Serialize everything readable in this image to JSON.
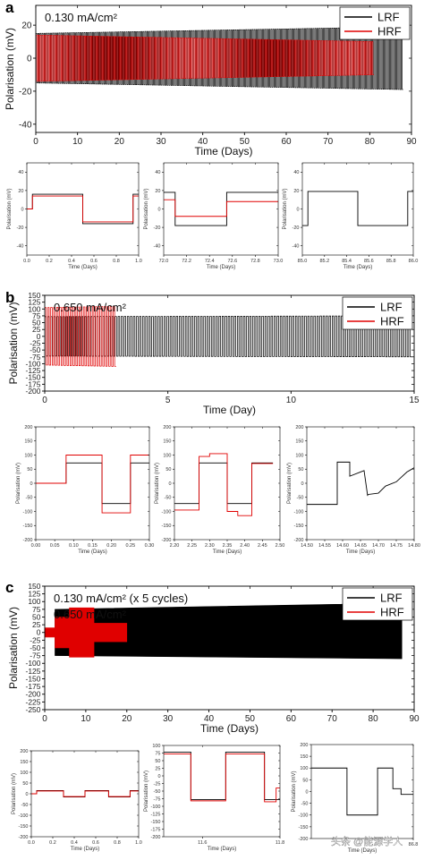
{
  "colors": {
    "LRF": "#000000",
    "HRF": "#e00000",
    "frame": "#000000"
  },
  "watermark": "头条 @能源学人",
  "chart_data": [
    {
      "panel": "a",
      "type": "line",
      "annotation": "0.130 mA/cm²",
      "xlabel": "Time (Days)",
      "ylabel": "Polarisation (mV)",
      "xlim": [
        0,
        90
      ],
      "ylim": [
        -45,
        32
      ],
      "xticks": [
        0,
        10,
        20,
        30,
        40,
        50,
        60,
        70,
        80,
        90
      ],
      "yticks": [
        -40,
        -20,
        0,
        20
      ],
      "legend": {
        "placement": "top-right",
        "entries": [
          "LRF",
          "HRF"
        ]
      },
      "series": [
        {
          "name": "LRF",
          "color": "#000000",
          "kind": "square-wave",
          "x_range": [
            0,
            88
          ],
          "amplitude_start": 15,
          "amplitude_end": 19,
          "cycles": 175
        },
        {
          "name": "HRF",
          "color": "#e00000",
          "kind": "square-wave",
          "x_range": [
            0,
            81
          ],
          "amplitude_start": 14,
          "amplitude_end": 10,
          "cycles": 160
        }
      ]
    },
    {
      "panel": "a1",
      "type": "line",
      "xlabel": "Time (Days)",
      "ylabel": "Polarisation (mV)",
      "xlim": [
        0,
        1
      ],
      "ylim": [
        -50,
        50
      ],
      "xticks": [
        0.0,
        0.2,
        0.4,
        0.6,
        0.8,
        1.0
      ],
      "xtick_labels": [
        "0.0",
        "0.2",
        "0.4",
        "0.6",
        "0.8",
        "1.0"
      ],
      "yticks": [
        -40,
        -20,
        0,
        20,
        40
      ],
      "series": [
        {
          "name": "LRF",
          "color": "#000000",
          "x": [
            0,
            0.05,
            0.05,
            0.5,
            0.5,
            0.95,
            0.95,
            1.0
          ],
          "y": [
            0,
            0,
            16,
            16,
            -16,
            -16,
            16,
            16
          ]
        },
        {
          "name": "HRF",
          "color": "#e00000",
          "x": [
            0,
            0.05,
            0.05,
            0.5,
            0.5,
            0.95,
            0.95,
            1.0
          ],
          "y": [
            0,
            0,
            14,
            14,
            -14,
            -14,
            14,
            14
          ]
        }
      ]
    },
    {
      "panel": "a2",
      "type": "line",
      "xlabel": "Time (Days)",
      "ylabel": "Polarisation (mV)",
      "xlim": [
        72.0,
        73.0
      ],
      "ylim": [
        -50,
        50
      ],
      "xticks": [
        72.0,
        72.2,
        72.4,
        72.6,
        72.8,
        73.0
      ],
      "xtick_labels": [
        "72.0",
        "72.2",
        "72.4",
        "72.6",
        "72.8",
        "73.0"
      ],
      "yticks": [
        -40,
        -20,
        0,
        20,
        40
      ],
      "series": [
        {
          "name": "LRF",
          "color": "#000000",
          "x": [
            72.0,
            72.1,
            72.1,
            72.55,
            72.55,
            73.0
          ],
          "y": [
            18,
            18,
            -18,
            -18,
            18,
            18
          ]
        },
        {
          "name": "HRF",
          "color": "#e00000",
          "x": [
            72.0,
            72.1,
            72.1,
            72.55,
            72.55,
            73.0
          ],
          "y": [
            10,
            10,
            -8,
            -8,
            8,
            8
          ]
        }
      ]
    },
    {
      "panel": "a3",
      "type": "line",
      "xlabel": "Time (Days)",
      "ylabel": "Polarisation (mV)",
      "xlim": [
        85.0,
        86.0
      ],
      "ylim": [
        -50,
        50
      ],
      "xticks": [
        85.0,
        85.2,
        85.4,
        85.6,
        85.8,
        86.0
      ],
      "xtick_labels": [
        "85.0",
        "85.2",
        "85.4",
        "85.6",
        "85.8",
        "86.0"
      ],
      "yticks": [
        -40,
        -20,
        0,
        20,
        40
      ],
      "series": [
        {
          "name": "LRF",
          "color": "#000000",
          "x": [
            85.0,
            85.05,
            85.05,
            85.5,
            85.5,
            85.95,
            85.95,
            86.0
          ],
          "y": [
            -18,
            -18,
            19,
            19,
            -18,
            -18,
            19,
            19
          ]
        }
      ]
    },
    {
      "panel": "b",
      "type": "line",
      "annotation": "0.650 mA/cm²",
      "xlabel": "Time (Day)",
      "ylabel": "Polarisation (mV)",
      "xlim": [
        0,
        15
      ],
      "ylim": [
        -200,
        150
      ],
      "xticks": [
        0,
        5,
        10,
        15
      ],
      "yticks": [
        -200,
        -175,
        -150,
        -125,
        -100,
        -75,
        -50,
        -25,
        0,
        25,
        50,
        75,
        100,
        125,
        150
      ],
      "legend": {
        "placement": "top-right",
        "entries": [
          "LRF",
          "HRF"
        ]
      },
      "series": [
        {
          "name": "LRF",
          "color": "#000000",
          "kind": "square-wave",
          "x_range": [
            0,
            14.9
          ],
          "amplitude_start": 72,
          "amplitude_end": 75,
          "cycles": 120
        },
        {
          "name": "HRF",
          "color": "#e00000",
          "kind": "square-wave",
          "x_range": [
            0,
            2.9
          ],
          "amplitude_start": 105,
          "amplitude_end": 110,
          "cycles": 24
        }
      ]
    },
    {
      "panel": "b1",
      "type": "line",
      "xlabel": "Time (Days)",
      "ylabel": "Polarisation (mV)",
      "xlim": [
        0,
        0.3
      ],
      "ylim": [
        -200,
        200
      ],
      "xticks": [
        0.0,
        0.05,
        0.1,
        0.15,
        0.2,
        0.25,
        0.3
      ],
      "xtick_labels": [
        "0.00",
        "0.05",
        "0.10",
        "0.15",
        "0.20",
        "0.25",
        "0.30"
      ],
      "yticks": [
        -200,
        -150,
        -100,
        -50,
        0,
        50,
        100,
        150,
        200
      ],
      "series": [
        {
          "name": "LRF",
          "color": "#000000",
          "x": [
            0,
            0.08,
            0.08,
            0.175,
            0.175,
            0.25,
            0.25,
            0.3
          ],
          "y": [
            0,
            0,
            72,
            72,
            -72,
            -72,
            72,
            72
          ]
        },
        {
          "name": "HRF",
          "color": "#e00000",
          "x": [
            0,
            0.08,
            0.08,
            0.175,
            0.175,
            0.25,
            0.25,
            0.3
          ],
          "y": [
            0,
            0,
            100,
            100,
            -105,
            -105,
            100,
            100
          ]
        }
      ]
    },
    {
      "panel": "b2",
      "type": "line",
      "xlabel": "Time (Days)",
      "ylabel": "Polarisation (mV)",
      "xlim": [
        2.2,
        2.5
      ],
      "ylim": [
        -200,
        200
      ],
      "xticks": [
        2.2,
        2.25,
        2.3,
        2.35,
        2.4,
        2.45,
        2.5
      ],
      "xtick_labels": [
        "2.20",
        "2.25",
        "2.30",
        "2.35",
        "2.40",
        "2.45",
        "2.50"
      ],
      "yticks": [
        -200,
        -150,
        -100,
        -50,
        0,
        50,
        100,
        150,
        200
      ],
      "series": [
        {
          "name": "LRF",
          "color": "#000000",
          "x": [
            2.2,
            2.27,
            2.27,
            2.35,
            2.35,
            2.42,
            2.42,
            2.48
          ],
          "y": [
            -72,
            -72,
            72,
            72,
            -72,
            -72,
            72,
            72
          ]
        },
        {
          "name": "HRF",
          "color": "#e00000",
          "x": [
            2.2,
            2.27,
            2.27,
            2.3,
            2.3,
            2.35,
            2.35,
            2.38,
            2.38,
            2.42,
            2.42,
            2.48
          ],
          "y": [
            -95,
            -95,
            95,
            95,
            105,
            105,
            -100,
            -100,
            -115,
            -115,
            70,
            70
          ]
        }
      ]
    },
    {
      "panel": "b3",
      "type": "line",
      "xlabel": "Time (Days)",
      "ylabel": "Polarisation (mV)",
      "xlim": [
        14.5,
        14.8
      ],
      "ylim": [
        -200,
        200
      ],
      "xticks": [
        14.5,
        14.55,
        14.6,
        14.65,
        14.7,
        14.75,
        14.8
      ],
      "xtick_labels": [
        "14.50",
        "14.55",
        "14.60",
        "14.65",
        "14.70",
        "14.75",
        "14.80"
      ],
      "yticks": [
        -200,
        -150,
        -100,
        -50,
        0,
        50,
        100,
        150,
        200
      ],
      "series": [
        {
          "name": "LRF",
          "color": "#000000",
          "x": [
            14.5,
            14.585,
            14.585,
            14.62,
            14.62,
            14.65,
            14.66,
            14.67,
            14.67,
            14.7,
            14.72,
            14.75,
            14.78,
            14.8
          ],
          "y": [
            -75,
            -75,
            75,
            75,
            25,
            40,
            45,
            -45,
            -40,
            -35,
            -10,
            5,
            40,
            55
          ]
        }
      ]
    },
    {
      "panel": "c",
      "type": "line",
      "annotation": [
        "0.130 mA/cm² (x 5 cycles)",
        "0.650 mA/cm²"
      ],
      "xlabel": "Time (Days)",
      "ylabel": "Polarisation (mV)",
      "xlim": [
        0,
        90
      ],
      "ylim": [
        -250,
        150
      ],
      "xticks": [
        0,
        10,
        20,
        30,
        40,
        50,
        60,
        70,
        80,
        90
      ],
      "yticks": [
        -250,
        -225,
        -200,
        -175,
        -150,
        -125,
        -100,
        -75,
        -50,
        -25,
        0,
        25,
        50,
        75,
        100,
        125,
        150
      ],
      "legend": {
        "placement": "top-right",
        "entries": [
          "LRF",
          "HRF"
        ]
      },
      "series": [
        {
          "name": "LRF",
          "color": "#000000",
          "kind": "filled-envelope",
          "x": [
            2.5,
            87
          ],
          "upper": [
            75,
            95
          ],
          "lower": [
            -75,
            -85
          ]
        },
        {
          "name": "HRF",
          "color": "#e00000",
          "kind": "filled-envelope",
          "x": [
            0,
            2.5,
            2.5,
            6,
            6,
            12,
            12,
            20,
            20
          ],
          "upper": [
            15,
            15,
            50,
            50,
            80,
            80,
            30,
            30,
            0
          ],
          "lower": [
            -15,
            -15,
            -50,
            -50,
            -80,
            -80,
            -30,
            -30,
            0
          ]
        }
      ]
    },
    {
      "panel": "c1",
      "type": "line",
      "xlabel": "Time (Days)",
      "ylabel": "Polarisation (mV)",
      "xlim": [
        0,
        1
      ],
      "ylim": [
        -200,
        200
      ],
      "xticks": [
        0.0,
        0.2,
        0.4,
        0.6,
        0.8,
        1.0
      ],
      "xtick_labels": [
        "0.0",
        "0.2",
        "0.4",
        "0.6",
        "0.8",
        "1.0"
      ],
      "yticks": [
        -200,
        -150,
        -100,
        -50,
        0,
        50,
        100,
        150,
        200
      ],
      "series": [
        {
          "name": "LRF",
          "color": "#000000",
          "x": [
            0,
            0.05,
            0.05,
            0.3,
            0.3,
            0.5,
            0.5,
            0.72,
            0.72,
            0.92,
            0.92,
            1.0
          ],
          "y": [
            0,
            0,
            15,
            15,
            -15,
            -15,
            15,
            15,
            -15,
            -15,
            15,
            15
          ]
        },
        {
          "name": "HRF",
          "color": "#e00000",
          "x": [
            0,
            0.05,
            0.05,
            0.3,
            0.3,
            0.5,
            0.5,
            0.72,
            0.72,
            0.92,
            0.92,
            1.0
          ],
          "y": [
            0,
            0,
            13,
            13,
            -13,
            -13,
            13,
            13,
            -13,
            -13,
            13,
            13
          ]
        }
      ]
    },
    {
      "panel": "c2",
      "type": "line",
      "xlabel": "Time (Days)",
      "ylabel": "Polarisation (mV)",
      "xlim": [
        11.5,
        11.8
      ],
      "ylim": [
        -200,
        100
      ],
      "xticks": [
        11.6,
        11.8
      ],
      "xtick_labels": [
        "11.6",
        "11.8"
      ],
      "yticks": [
        -200,
        -175,
        -150,
        -125,
        -100,
        -75,
        -50,
        -25,
        0,
        25,
        50,
        75,
        100
      ],
      "series": [
        {
          "name": "LRF",
          "color": "#000000",
          "x": [
            11.5,
            11.57,
            11.57,
            11.66,
            11.66,
            11.76,
            11.76,
            11.8
          ],
          "y": [
            78,
            78,
            -78,
            -78,
            78,
            78,
            -78,
            -78
          ]
        },
        {
          "name": "HRF",
          "color": "#e00000",
          "x": [
            11.5,
            11.57,
            11.57,
            11.66,
            11.66,
            11.76,
            11.76,
            11.79,
            11.79,
            11.8
          ],
          "y": [
            72,
            72,
            -82,
            -82,
            72,
            72,
            -85,
            -85,
            -40,
            -40
          ]
        }
      ]
    },
    {
      "panel": "c3",
      "type": "line",
      "xlabel": "Time (Days)",
      "ylabel": "Polarisation (mV)",
      "xlim": [
        85.8,
        86.8
      ],
      "ylim": [
        -200,
        200
      ],
      "xticks": [
        86.8
      ],
      "xtick_labels": [
        "86.8"
      ],
      "yticks": [
        -200,
        -150,
        -100,
        -50,
        0,
        50,
        100,
        150,
        200
      ],
      "series": [
        {
          "name": "LRF",
          "color": "#000000",
          "x": [
            85.8,
            86.15,
            86.15,
            86.45,
            86.45,
            86.6,
            86.6,
            86.68,
            86.68,
            86.8
          ],
          "y": [
            100,
            100,
            -100,
            -100,
            100,
            100,
            12,
            12,
            -12,
            -12
          ]
        }
      ]
    }
  ]
}
